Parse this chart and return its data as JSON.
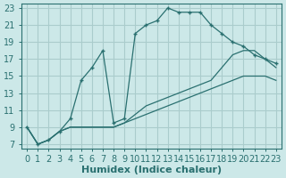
{
  "xlabel": "Humidex (Indice chaleur)",
  "background_color": "#cce8e8",
  "grid_color": "#aacccc",
  "line_color": "#2a7070",
  "xlim": [
    -0.5,
    23.5
  ],
  "ylim": [
    6.5,
    23.5
  ],
  "xticks": [
    0,
    1,
    2,
    3,
    4,
    5,
    6,
    7,
    8,
    9,
    10,
    11,
    12,
    13,
    14,
    15,
    16,
    17,
    18,
    19,
    20,
    21,
    22,
    23
  ],
  "yticks": [
    7,
    9,
    11,
    13,
    15,
    17,
    19,
    21,
    23
  ],
  "line1_x": [
    0,
    1,
    2,
    3,
    4,
    5,
    6,
    7,
    8,
    9,
    10,
    11,
    12,
    13,
    14,
    15,
    16,
    17,
    18,
    19,
    20,
    21,
    22,
    23
  ],
  "line1_y": [
    9,
    7,
    7.5,
    8.5,
    10,
    14.5,
    16,
    18,
    9.5,
    10,
    20,
    21,
    21.5,
    23,
    22.5,
    22.5,
    22.5,
    21,
    20,
    19,
    18.5,
    17.5,
    17,
    16.5
  ],
  "line2_x": [
    0,
    1,
    2,
    3,
    4,
    5,
    6,
    7,
    8,
    9,
    10,
    11,
    12,
    13,
    14,
    15,
    16,
    17,
    18,
    19,
    20,
    21,
    22,
    23
  ],
  "line2_y": [
    9,
    7,
    7.5,
    8.5,
    9,
    9,
    9,
    9,
    9,
    9.5,
    10,
    10.5,
    11,
    11.5,
    12,
    12.5,
    13,
    13.5,
    14,
    14.5,
    15,
    15,
    15,
    14.5
  ],
  "line3_x": [
    0,
    1,
    2,
    3,
    4,
    5,
    6,
    7,
    8,
    9,
    10,
    11,
    12,
    13,
    14,
    15,
    16,
    17,
    18,
    19,
    20,
    21,
    22,
    23
  ],
  "line3_y": [
    9,
    7,
    7.5,
    8.5,
    9,
    9,
    9,
    9,
    9,
    9.5,
    10.5,
    11.5,
    12,
    12.5,
    13,
    13.5,
    14,
    14.5,
    16,
    17.5,
    18,
    18,
    17,
    16
  ],
  "tick_fontsize": 7,
  "label_fontsize": 8
}
